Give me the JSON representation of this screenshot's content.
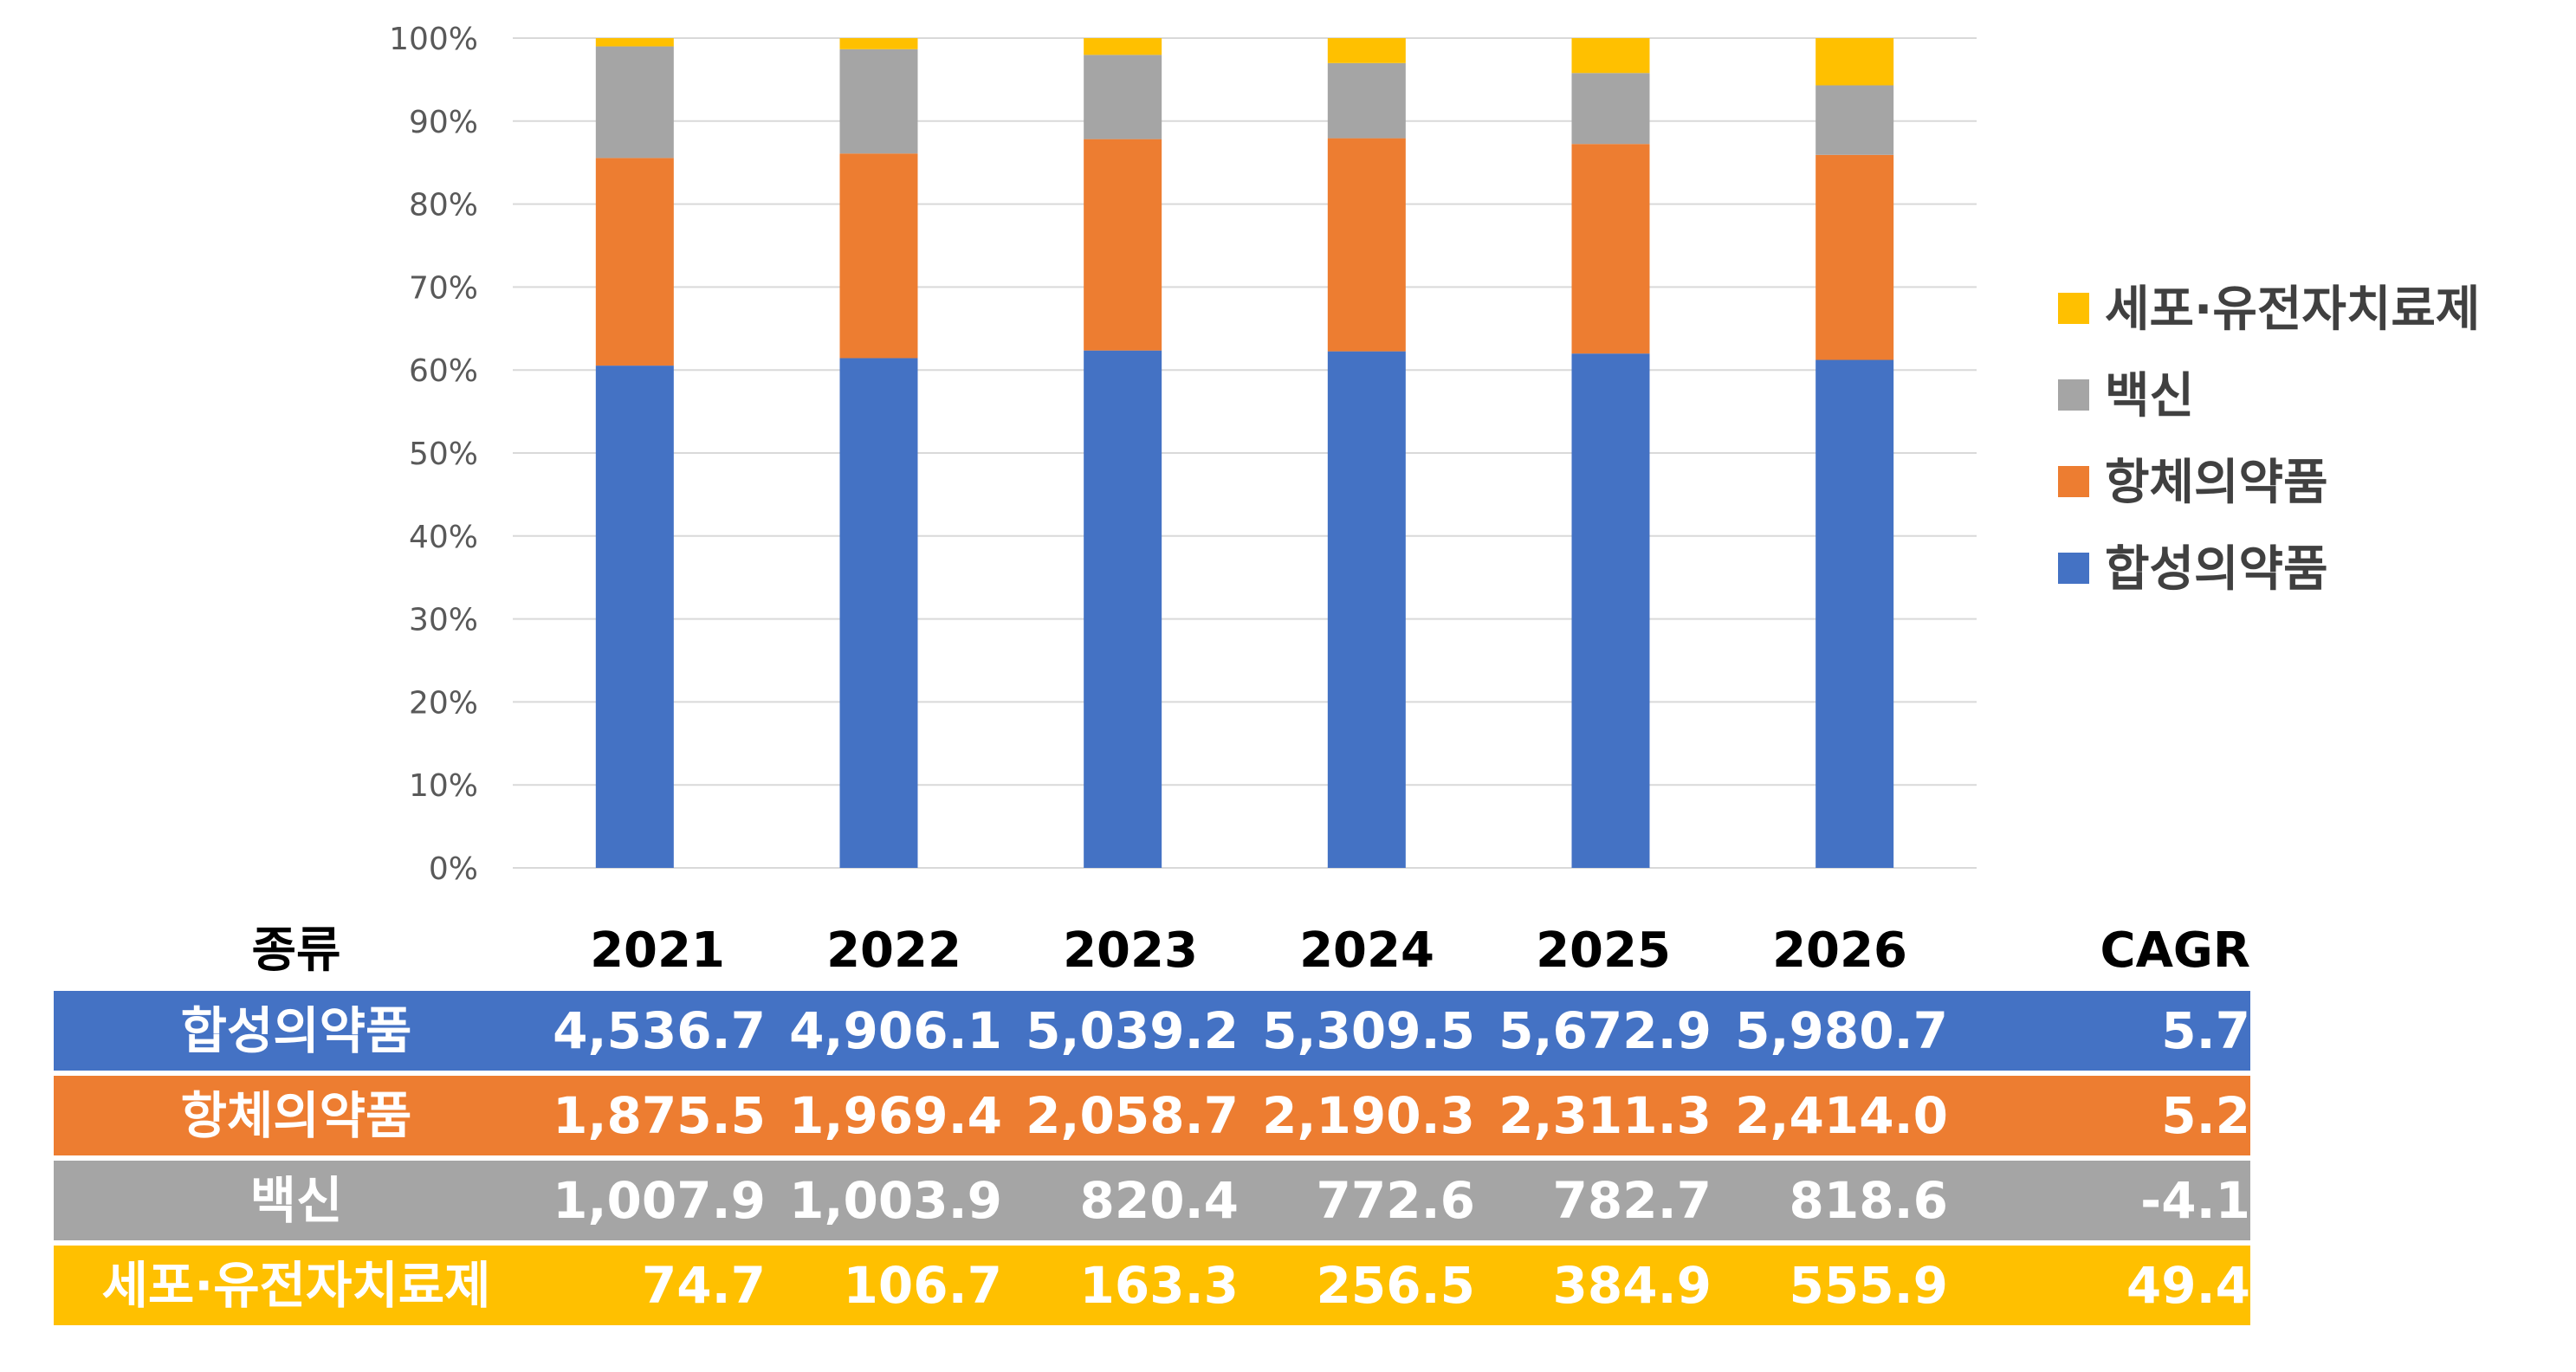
{
  "colors": {
    "synthetic": "#4472C4",
    "antibody": "#ED7D31",
    "vaccine": "#A5A5A5",
    "cell_gene": "#FFC000",
    "grid": "#D9D9D9",
    "tick_text": "#595959"
  },
  "chart_data": {
    "type": "bar",
    "stacked": "percent",
    "categories": [
      "2021",
      "2022",
      "2023",
      "2024",
      "2025",
      "2026"
    ],
    "y_ticks": [
      "0%",
      "10%",
      "20%",
      "30%",
      "40%",
      "50%",
      "60%",
      "70%",
      "80%",
      "90%",
      "100%"
    ],
    "ylim": [
      0,
      100
    ],
    "grid": true,
    "legend_position": "right",
    "series": [
      {
        "name": "합성의약품",
        "color_key": "synthetic",
        "values": [
          4536.7,
          4906.1,
          5039.2,
          5309.5,
          5672.9,
          5980.7
        ]
      },
      {
        "name": "항체의약품",
        "color_key": "antibody",
        "values": [
          1875.5,
          1969.4,
          2058.7,
          2190.3,
          2311.3,
          2414.0
        ]
      },
      {
        "name": "백신",
        "color_key": "vaccine",
        "values": [
          1007.9,
          1003.9,
          820.4,
          772.6,
          782.7,
          818.6
        ]
      },
      {
        "name": "세포·유전자치료제",
        "color_key": "cell_gene",
        "values": [
          74.7,
          106.7,
          163.3,
          256.5,
          384.9,
          555.9
        ]
      }
    ],
    "legend_order": [
      "세포·유전자치료제",
      "백신",
      "항체의약품",
      "합성의약품"
    ]
  },
  "table": {
    "header": {
      "type_label": "종류",
      "years": [
        "2021",
        "2022",
        "2023",
        "2024",
        "2025",
        "2026"
      ],
      "cagr_label": "CAGR"
    },
    "rows": [
      {
        "key": "synthetic",
        "name": "합성의약품",
        "values": [
          "4,536.7",
          "4,906.1",
          "5,039.2",
          "5,309.5",
          "5,672.9",
          "5,980.7"
        ],
        "cagr": "5.7"
      },
      {
        "key": "antibody",
        "name": "항체의약품",
        "values": [
          "1,875.5",
          "1,969.4",
          "2,058.7",
          "2,190.3",
          "2,311.3",
          "2,414.0"
        ],
        "cagr": "5.2"
      },
      {
        "key": "vaccine",
        "name": "백신",
        "values": [
          "1,007.9",
          "1,003.9",
          "820.4",
          "772.6",
          "782.7",
          "818.6"
        ],
        "cagr": "-4.1"
      },
      {
        "key": "cell_gene",
        "name": "세포·유전자치료제",
        "values": [
          "74.7",
          "106.7",
          "163.3",
          "256.5",
          "384.9",
          "555.9"
        ],
        "cagr": "49.4"
      }
    ]
  }
}
